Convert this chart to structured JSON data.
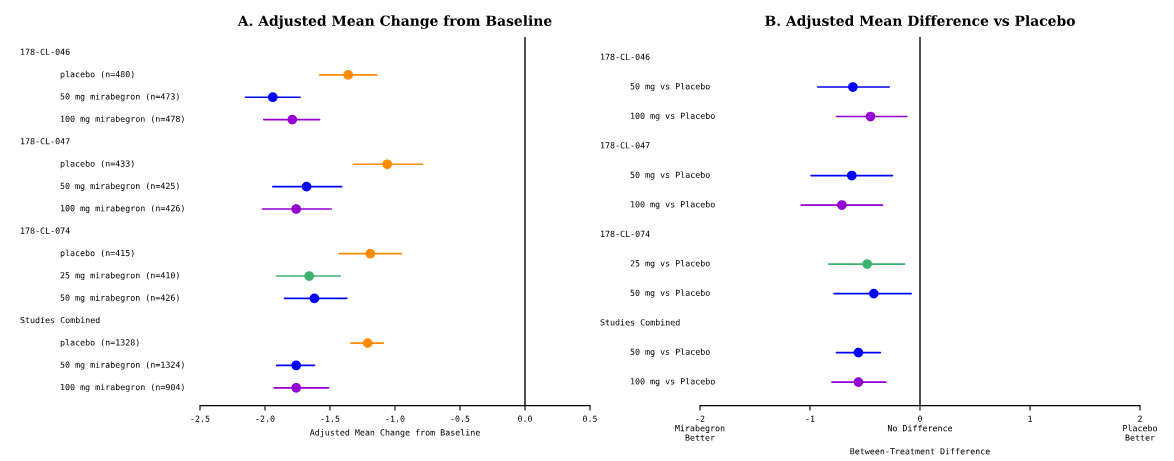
{
  "chart_data": [
    {
      "type": "scatter",
      "orientation": "horizontal",
      "title": "A. Adjusted Mean Change from Baseline",
      "xlabel": "Adjusted Mean Change from Baseline",
      "categories": [
        "178-CL-046",
        "placebo (n=480)",
        "50 mg mirabegron (n=473)",
        "100 mg mirabegron (n=478)",
        "178-CL-047",
        "placebo (n=433)",
        "50 mg mirabegron (n=425)",
        "100 mg mirabegron (n=426)",
        "178-CL-074",
        "placebo (n=415)",
        "25 mg mirabegron (n=410)",
        "50 mg mirabegron (n=426)",
        "Studies Combined",
        "placebo (n=1328)",
        "50 mg mirabegron (n=1324)",
        "100 mg mirabegron (n=904)"
      ],
      "series": [
        {
          "color": "#ff8c00",
          "values": [
            null,
            -1.36,
            null,
            null,
            null,
            -1.06,
            null,
            null,
            null,
            -1.19,
            null,
            null,
            null,
            -1.21,
            null,
            null
          ],
          "errors": [
            null,
            [
              -1.58,
              -1.14
            ],
            null,
            null,
            null,
            [
              -1.32,
              -0.79
            ],
            null,
            null,
            null,
            [
              -1.43,
              -0.95
            ],
            null,
            null,
            null,
            [
              -1.34,
              -1.09
            ],
            null,
            null
          ]
        },
        {
          "color": "#3cb371",
          "values": [
            null,
            null,
            null,
            null,
            null,
            null,
            null,
            null,
            null,
            null,
            -1.66,
            null,
            null,
            null,
            null,
            null
          ],
          "errors": [
            null,
            null,
            null,
            null,
            null,
            null,
            null,
            null,
            null,
            null,
            [
              -1.91,
              -1.42
            ],
            null,
            null,
            null,
            null,
            null
          ]
        },
        {
          "color": "#0000ff",
          "values": [
            null,
            null,
            -1.94,
            null,
            null,
            null,
            -1.68,
            null,
            null,
            null,
            null,
            -1.62,
            null,
            null,
            -1.76,
            null
          ],
          "errors": [
            null,
            null,
            [
              -2.15,
              -1.73
            ],
            null,
            null,
            null,
            [
              -1.94,
              -1.41
            ],
            null,
            null,
            null,
            null,
            [
              -1.85,
              -1.37
            ],
            null,
            null,
            [
              -1.91,
              -1.62
            ],
            null
          ]
        },
        {
          "color": "#9400d3",
          "values": [
            null,
            null,
            null,
            -1.79,
            null,
            null,
            null,
            -1.76,
            null,
            null,
            null,
            null,
            null,
            null,
            null,
            -1.76
          ],
          "errors": [
            null,
            null,
            null,
            [
              -2.01,
              -1.58
            ],
            null,
            null,
            null,
            [
              -2.02,
              -1.49
            ],
            null,
            null,
            null,
            null,
            null,
            null,
            null,
            [
              -1.93,
              -1.51
            ]
          ]
        }
      ],
      "xlim": [
        -2.5,
        0.5
      ],
      "xticks": [
        {
          "value": -2.5,
          "label": "-2.5"
        },
        {
          "value": -2.0,
          "label": "-2.0"
        },
        {
          "value": -1.5,
          "label": "-1.5"
        },
        {
          "value": -1.0,
          "label": "-1.0"
        },
        {
          "value": -0.5,
          "label": "-0.5"
        },
        {
          "value": 0,
          "label": "0.0"
        },
        {
          "value": 0.5,
          "label": "0.5"
        }
      ],
      "ref_lines": [
        {
          "axis": "x",
          "value": 0,
          "color": "#000000"
        }
      ],
      "marker": "circle",
      "grid": false,
      "tick_labels": "x"
    },
    {
      "type": "scatter",
      "orientation": "horizontal",
      "title": "B. Adjusted Mean Difference vs Placebo",
      "xlabel": "Between-Treatment Difference",
      "categories": [
        "178-CL-046",
        "50 mg vs Placebo",
        "100 mg vs Placebo",
        "178-CL-047",
        "50 mg vs Placebo",
        "100 mg vs Placebo",
        "178-CL-074",
        "25 mg vs Placebo",
        "50 mg vs Placebo",
        "Studies Combined",
        "50 mg vs Placebo",
        "100 mg vs Placebo"
      ],
      "series": [
        {
          "color": "#3cb371",
          "values": [
            null,
            null,
            null,
            null,
            null,
            null,
            null,
            -0.48,
            null,
            null,
            null,
            null
          ],
          "errors": [
            null,
            null,
            null,
            null,
            null,
            null,
            null,
            [
              -0.83,
              -0.14
            ],
            null,
            null,
            null,
            null
          ]
        },
        {
          "color": "#0000ff",
          "values": [
            null,
            -0.61,
            null,
            null,
            -0.62,
            null,
            null,
            null,
            -0.42,
            null,
            -0.56,
            null
          ],
          "errors": [
            null,
            [
              -0.93,
              -0.28
            ],
            null,
            null,
            [
              -0.99,
              -0.25
            ],
            null,
            null,
            null,
            [
              -0.78,
              -0.08
            ],
            null,
            [
              -0.76,
              -0.36
            ],
            null
          ]
        },
        {
          "color": "#9400d3",
          "values": [
            null,
            null,
            -0.45,
            null,
            null,
            -0.71,
            null,
            null,
            null,
            null,
            null,
            -0.56
          ],
          "errors": [
            null,
            null,
            [
              -0.76,
              -0.12
            ],
            null,
            null,
            [
              -1.08,
              -0.34
            ],
            null,
            null,
            null,
            null,
            null,
            [
              -0.8,
              -0.31
            ]
          ]
        }
      ],
      "xlim": [
        -2,
        2
      ],
      "xticks": [
        {
          "value": -2,
          "label": "-2\nMirabegron\nBetter"
        },
        {
          "value": -1,
          "label": "-1"
        },
        {
          "value": 0,
          "label": "0\nNo Difference"
        },
        {
          "value": 1,
          "label": "1"
        },
        {
          "value": 2,
          "label": "2\nPlacebo\nBetter"
        }
      ],
      "ref_lines": [
        {
          "axis": "x",
          "value": 0,
          "color": "#000000"
        }
      ],
      "marker": "circle",
      "grid": false,
      "tick_labels": "x"
    }
  ]
}
